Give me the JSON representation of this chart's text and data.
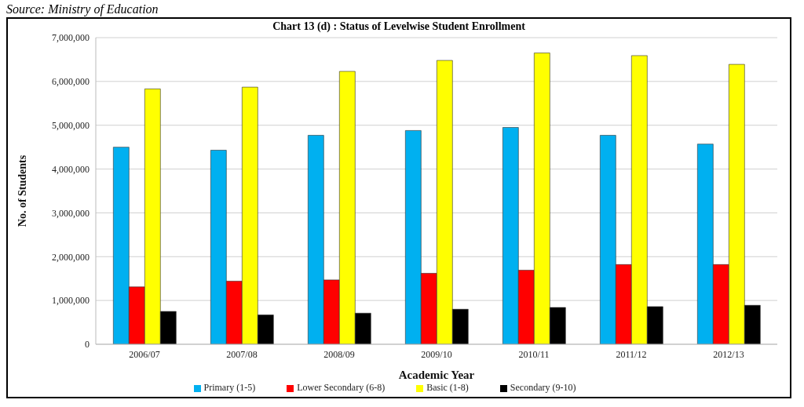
{
  "chart_data": {
    "type": "bar",
    "title": "Chart 13 (d) : Status of Levelwise Student Enrollment",
    "xlabel": "Academic Year",
    "ylabel": "No. of Students",
    "annotations": [
      "Source: Ministry of Education"
    ],
    "categories": [
      "2006/07",
      "2007/08",
      "2008/09",
      "2009/10",
      "2010/11",
      "2011/12",
      "2012/13"
    ],
    "series": [
      {
        "name": "Primary (1-5)",
        "color": "#00b0f0",
        "values": [
          4500000,
          4430000,
          4770000,
          4880000,
          4950000,
          4770000,
          4570000
        ]
      },
      {
        "name": "Lower Secondary (6-8)",
        "color": "#ff0000",
        "values": [
          1310000,
          1440000,
          1470000,
          1620000,
          1690000,
          1820000,
          1820000
        ]
      },
      {
        "name": "Basic (1-8)",
        "color": "#ffff00",
        "values": [
          5830000,
          5870000,
          6230000,
          6480000,
          6650000,
          6590000,
          6390000
        ]
      },
      {
        "name": "Secondary (9-10)",
        "color": "#000000",
        "values": [
          750000,
          670000,
          710000,
          800000,
          840000,
          860000,
          890000
        ]
      }
    ],
    "ylim": [
      0,
      7000000
    ],
    "yticks": [
      0,
      {
        "value": 1000000,
        "label": "1,000,000"
      },
      {
        "value": 2000000,
        "label": "2,000,000"
      },
      {
        "value": 3000000,
        "label": "3,000,000"
      },
      {
        "value": 4000000,
        "label": "4,000,000"
      },
      {
        "value": 5000000,
        "label": "5,000,000"
      },
      {
        "value": 6000000,
        "label": "6,000,000"
      },
      {
        "value": 7000000,
        "label": "7,000,000"
      }
    ],
    "grid": "y",
    "legend": "bottom"
  }
}
